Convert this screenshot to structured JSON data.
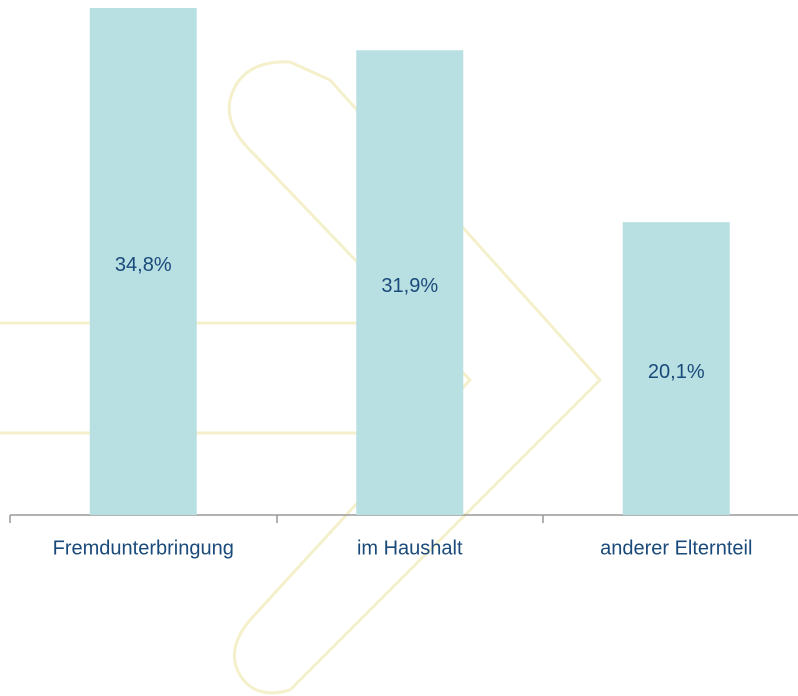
{
  "chart_data": {
    "type": "bar",
    "categories": [
      "Fremdunterbringung",
      "im Haushalt",
      "anderer Elternteil"
    ],
    "values": [
      34.8,
      31.9,
      20.1
    ],
    "value_labels": [
      "34,8%",
      "31,9%",
      "20,1%"
    ],
    "color": "#b8dfe2"
  }
}
